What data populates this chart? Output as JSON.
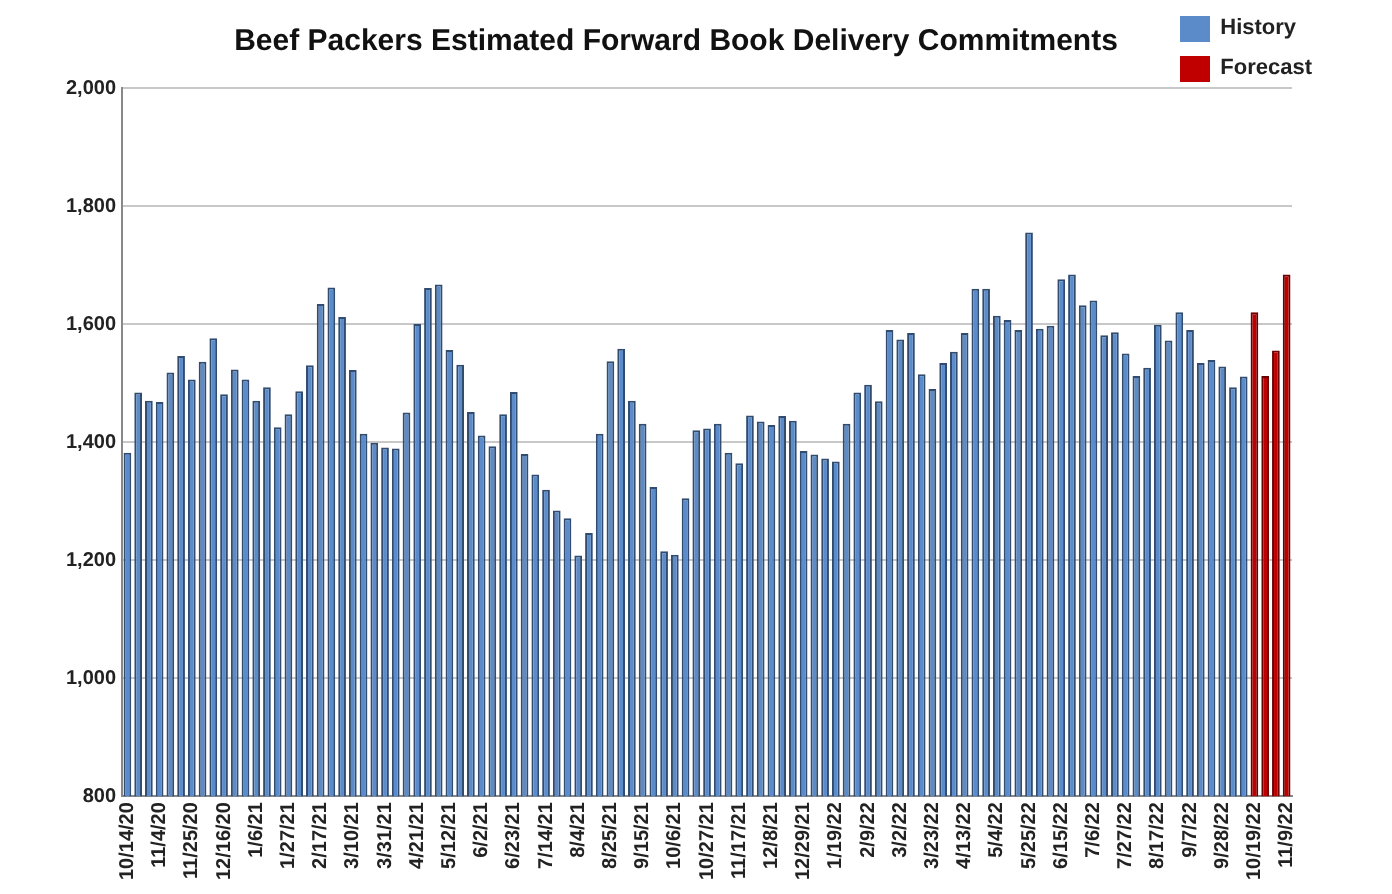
{
  "chart_data": {
    "type": "bar",
    "title": "Beef Packers Estimated Forward Book Delivery Commitments",
    "categories": [
      "10/14/20",
      null,
      null,
      "11/4/20",
      null,
      null,
      "11/25/20",
      null,
      null,
      "12/16/20",
      null,
      null,
      "1/6/21",
      null,
      null,
      "1/27/21",
      null,
      null,
      "2/17/21",
      null,
      null,
      "3/10/21",
      null,
      null,
      "3/31/21",
      null,
      null,
      "4/21/21",
      null,
      null,
      "5/12/21",
      null,
      null,
      "6/2/21",
      null,
      null,
      "6/23/21",
      null,
      null,
      "7/14/21",
      null,
      null,
      "8/4/21",
      null,
      null,
      "8/25/21",
      null,
      null,
      "9/15/21",
      null,
      null,
      "10/6/21",
      null,
      null,
      "10/27/21",
      null,
      null,
      "11/17/21",
      null,
      null,
      "12/8/21",
      null,
      null,
      "12/29/21",
      null,
      null,
      "1/19/22",
      null,
      null,
      "2/9/22",
      null,
      null,
      "3/2/22",
      null,
      null,
      "3/23/22",
      null,
      null,
      "4/13/22",
      null,
      null,
      "5/4/22",
      null,
      null,
      "5/25/22",
      null,
      null,
      "6/15/22",
      null,
      null,
      "7/6/22",
      null,
      null,
      "7/27/22",
      null,
      null,
      "8/17/22",
      null,
      null,
      "9/7/22",
      null,
      null,
      "9/28/22",
      null,
      null,
      "10/19/22",
      null,
      null,
      "11/9/22"
    ],
    "series": [
      {
        "name": "History",
        "color": "#5b8bc9",
        "values": [
          1382,
          1484,
          1470,
          1468,
          1518,
          1546,
          1506,
          1536,
          1576,
          1481,
          1523,
          1506,
          1470,
          1493,
          1425,
          1447,
          1486,
          1530,
          1634,
          1662,
          1612,
          1522,
          1414,
          1399,
          1391,
          1389,
          1450,
          1600,
          1661,
          1667,
          1556,
          1531,
          1451,
          1411,
          1393,
          1447,
          1485,
          1380,
          1345,
          1319,
          1284,
          1271,
          1208,
          1246,
          1414,
          1537,
          1558,
          1470,
          1431,
          1324,
          1215,
          1209,
          1305,
          1420,
          1423,
          1431,
          1382,
          1364,
          1445,
          1435,
          1429,
          1444,
          1436,
          1385,
          1379,
          1372,
          1367,
          1431,
          1484,
          1497,
          1469,
          1590,
          1574,
          1585,
          1515,
          1490,
          1534,
          1553,
          1585,
          1660,
          1660,
          1614,
          1607,
          1590,
          1755,
          1592,
          1597,
          1676,
          1684,
          1632,
          1640,
          1581,
          1586,
          1550,
          1512,
          1526,
          1599,
          1572,
          1620,
          1590,
          1534,
          1539,
          1528,
          1493,
          1511,
          null,
          null,
          null,
          null
        ]
      },
      {
        "name": "Forecast",
        "color": "#c00000",
        "values": [
          null,
          null,
          null,
          null,
          null,
          null,
          null,
          null,
          null,
          null,
          null,
          null,
          null,
          null,
          null,
          null,
          null,
          null,
          null,
          null,
          null,
          null,
          null,
          null,
          null,
          null,
          null,
          null,
          null,
          null,
          null,
          null,
          null,
          null,
          null,
          null,
          null,
          null,
          null,
          null,
          null,
          null,
          null,
          null,
          null,
          null,
          null,
          null,
          null,
          null,
          null,
          null,
          null,
          null,
          null,
          null,
          null,
          null,
          null,
          null,
          null,
          null,
          null,
          null,
          null,
          null,
          null,
          null,
          null,
          null,
          null,
          null,
          null,
          null,
          null,
          null,
          null,
          null,
          null,
          null,
          null,
          null,
          null,
          null,
          null,
          null,
          null,
          null,
          null,
          null,
          null,
          null,
          null,
          null,
          null,
          null,
          null,
          null,
          null,
          null,
          null,
          null,
          null,
          null,
          null,
          1620,
          1512,
          1555,
          1684
        ]
      }
    ],
    "ylim": [
      800,
      2000
    ],
    "yticks": [
      800,
      {
        "value": 1000,
        "label": "1,000"
      },
      {
        "value": 1200,
        "label": "1,200"
      },
      {
        "value": 1400,
        "label": "1,400"
      },
      {
        "value": 1600,
        "label": "1,600"
      },
      {
        "value": 1800,
        "label": "1,800"
      },
      {
        "value": 2000,
        "label": "2,000"
      }
    ],
    "grid": "y",
    "legend": "top right"
  }
}
